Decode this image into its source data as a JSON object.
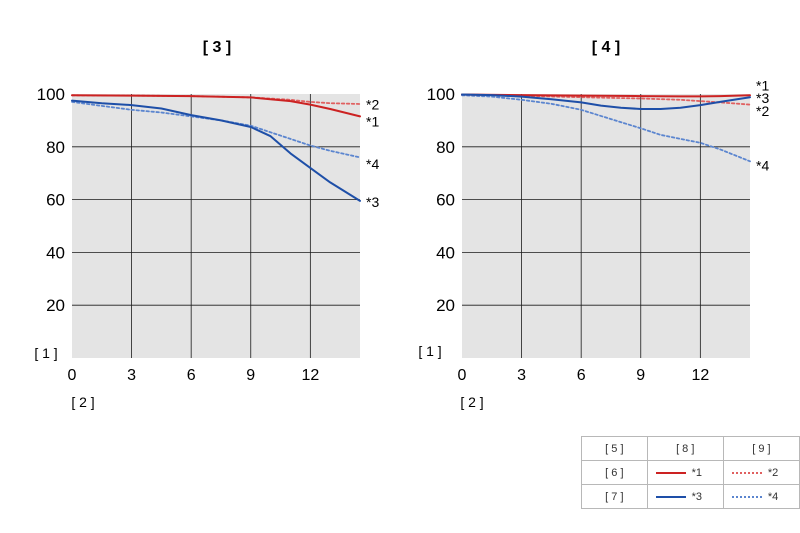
{
  "colors": {
    "red": "#cc2222",
    "red_light": "#e06060",
    "blue": "#1e4fa8",
    "blue_light": "#5b85cf",
    "plot_bg": "#e4e4e4",
    "grid": "#1a1a1a"
  },
  "chart_data": [
    {
      "type": "line",
      "title": "[ 3 ]",
      "ylabel": "[ 1 ]",
      "xlabel": "[ 2 ]",
      "xlim": [
        0,
        14.5
      ],
      "ylim": [
        0,
        100
      ],
      "xticks": [
        "0",
        "3",
        "6",
        "9",
        "12"
      ],
      "yticks": [
        "100",
        "80",
        "60",
        "40",
        "20"
      ],
      "grid": true,
      "series": [
        {
          "name": "*1",
          "style": "solid",
          "color": "red",
          "x": [
            0,
            3,
            6,
            9,
            11,
            12,
            13,
            14.5
          ],
          "y": [
            99.5,
            99.4,
            99.2,
            98.7,
            97.3,
            96.0,
            94.3,
            91.5
          ]
        },
        {
          "name": "*2",
          "style": "dotted",
          "color": "red_light",
          "x": [
            0,
            3,
            6,
            9,
            11,
            12,
            13,
            14.5
          ],
          "y": [
            99.5,
            99.4,
            99.2,
            98.7,
            97.8,
            97.0,
            96.5,
            96.2
          ]
        },
        {
          "name": "*3",
          "style": "solid",
          "color": "blue",
          "x": [
            0,
            1.5,
            3,
            4.5,
            6,
            7.5,
            9,
            10,
            11,
            12,
            13,
            14.5
          ],
          "y": [
            97.5,
            96.5,
            95.8,
            94.5,
            92.0,
            90.0,
            87.5,
            84.0,
            77.5,
            72.0,
            66.5,
            59.5
          ]
        },
        {
          "name": "*4",
          "style": "dotted",
          "color": "blue_light",
          "x": [
            0,
            1.5,
            3,
            4.5,
            6,
            7.5,
            9,
            10,
            11,
            12,
            13,
            14.5
          ],
          "y": [
            97.0,
            95.5,
            94.0,
            93.0,
            91.5,
            90.0,
            88.0,
            85.5,
            83.0,
            80.5,
            78.5,
            76.0
          ]
        }
      ],
      "end_labels": [
        {
          "text": "*2",
          "y": 96.0
        },
        {
          "text": "*1",
          "y": 89.5
        },
        {
          "text": "*4",
          "y": 73.5
        },
        {
          "text": "*3",
          "y": 59.0
        }
      ]
    },
    {
      "type": "line",
      "title": "[ 4 ]",
      "ylabel": "[ 1 ]",
      "xlabel": "[ 2 ]",
      "xlim": [
        0,
        14.5
      ],
      "ylim": [
        0,
        100
      ],
      "xticks": [
        "0",
        "3",
        "6",
        "9",
        "12"
      ],
      "yticks": [
        "100",
        "80",
        "60",
        "40",
        "20"
      ],
      "grid": true,
      "series": [
        {
          "name": "*1",
          "style": "solid",
          "color": "red",
          "x": [
            0,
            3,
            6,
            9,
            11,
            12,
            13,
            14.5
          ],
          "y": [
            99.8,
            99.6,
            99.4,
            99.2,
            99.1,
            99.1,
            99.2,
            99.5
          ]
        },
        {
          "name": "*2",
          "style": "dotted",
          "color": "red_light",
          "x": [
            0,
            3,
            6,
            9,
            11,
            12,
            13,
            14.5
          ],
          "y": [
            99.8,
            99.3,
            98.8,
            98.3,
            97.8,
            97.3,
            96.8,
            96.0
          ]
        },
        {
          "name": "*3",
          "style": "solid",
          "color": "blue",
          "x": [
            0,
            1.5,
            3,
            4.5,
            6,
            7,
            8,
            9,
            10,
            11,
            12,
            13,
            14.5
          ],
          "y": [
            99.8,
            99.6,
            99.0,
            98.0,
            96.8,
            95.6,
            94.8,
            94.3,
            94.3,
            94.8,
            95.8,
            97.0,
            98.8
          ]
        },
        {
          "name": "*4",
          "style": "dotted",
          "color": "blue_light",
          "x": [
            0,
            1.5,
            3,
            4.5,
            6,
            7.5,
            9,
            10,
            11,
            12,
            13,
            14.5
          ],
          "y": [
            99.5,
            99.0,
            97.8,
            96.3,
            94.0,
            90.5,
            87.0,
            84.5,
            83.0,
            81.5,
            79.0,
            74.5
          ]
        }
      ],
      "end_labels": [
        {
          "text": "*1",
          "y": 103.2
        },
        {
          "text": "*3",
          "y": 98.5
        },
        {
          "text": "*2",
          "y": 93.5
        },
        {
          "text": "*4",
          "y": 73.0
        }
      ]
    }
  ],
  "legend": {
    "header": [
      "[ 5 ]",
      "[ 8 ]",
      "[ 9 ]"
    ],
    "rows": [
      {
        "label": "[ 6 ]",
        "entries": [
          {
            "text": "*1",
            "style": "solid",
            "color": "red"
          },
          {
            "text": "*2",
            "style": "dotted",
            "color": "red_light"
          }
        ]
      },
      {
        "label": "[ 7 ]",
        "entries": [
          {
            "text": "*3",
            "style": "solid",
            "color": "blue"
          },
          {
            "text": "*4",
            "style": "dotted",
            "color": "blue_light"
          }
        ]
      }
    ]
  }
}
